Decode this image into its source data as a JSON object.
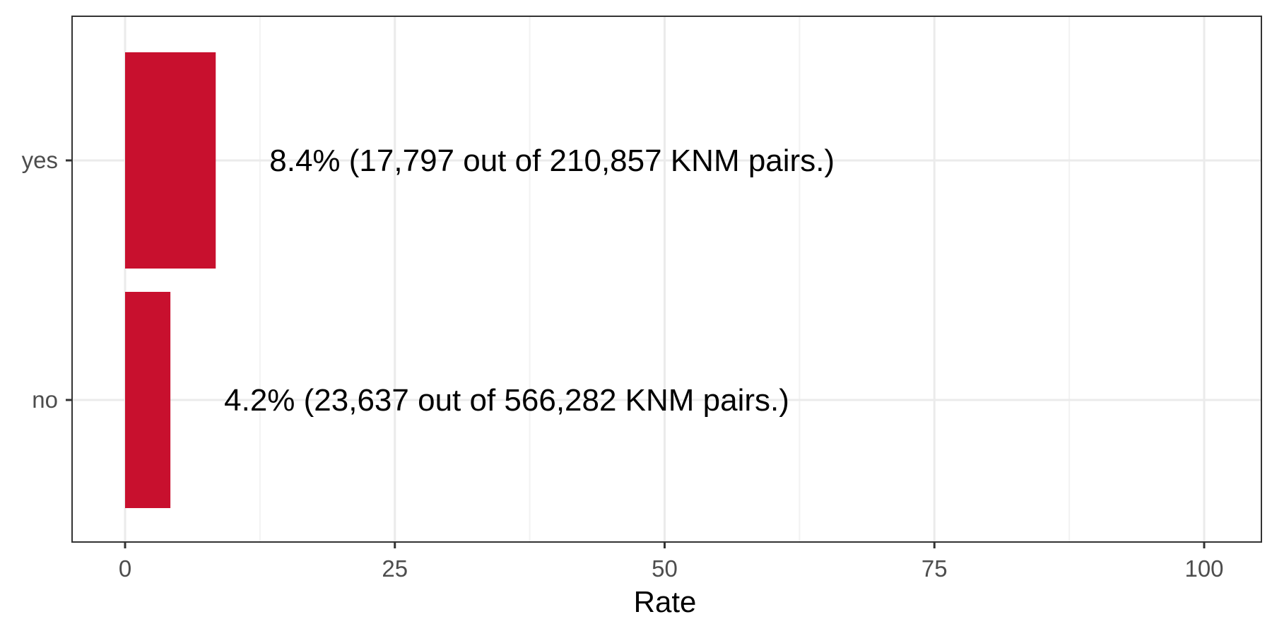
{
  "colors": {
    "bar": "#C8102E",
    "grid_major": "#EBEBEB",
    "grid_minor": "#F2F2F2",
    "panel_border": "#333333",
    "tick_text": "#4D4D4D",
    "text": "#000000"
  },
  "chart_data": {
    "type": "bar",
    "orientation": "horizontal",
    "categories": [
      "yes",
      "no"
    ],
    "values": [
      8.4,
      4.2
    ],
    "labels": [
      "8.4% (17,797 out of 210,857 KNM pairs.)",
      "4.2% (23,637 out of 566,282 KNM pairs.)"
    ],
    "title": "",
    "xlabel": "Rate",
    "ylabel": "",
    "xlim": [
      0,
      100
    ],
    "x_ticks": [
      0,
      25,
      50,
      75,
      100
    ],
    "x_tick_labels": [
      "0",
      "25",
      "50",
      "75",
      "100"
    ],
    "grid": true,
    "legend": "none"
  }
}
